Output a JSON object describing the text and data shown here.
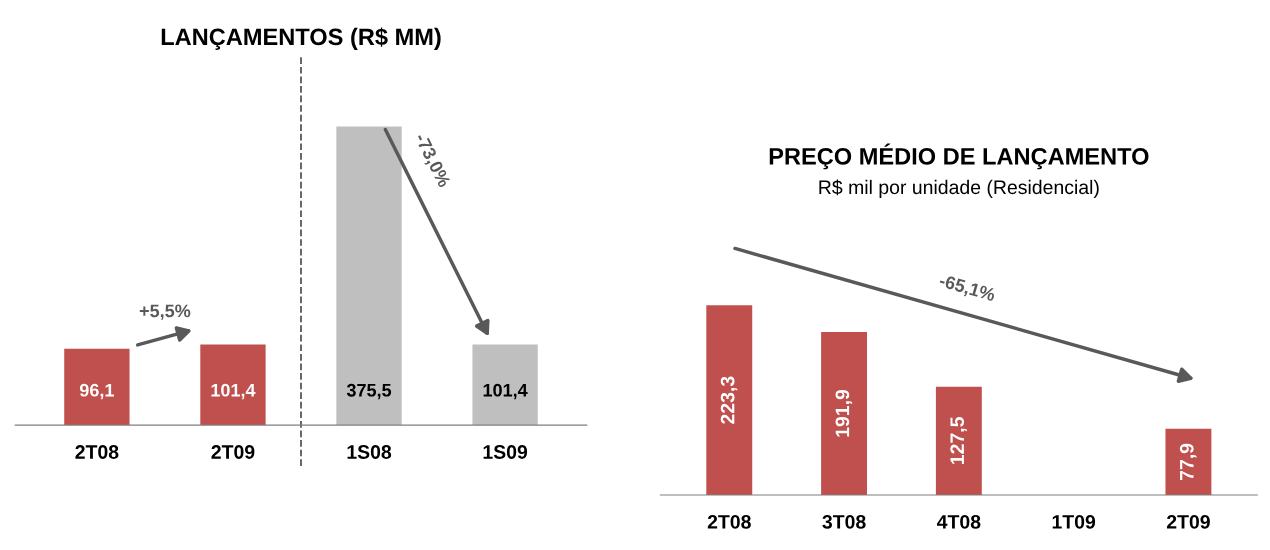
{
  "chart_data": [
    {
      "type": "bar",
      "title": "LANÇAMENTOS (R$ MM)",
      "categories": [
        "2T08",
        "2T09",
        "1S08",
        "1S09"
      ],
      "values": [
        96.1,
        101.4,
        375.5,
        101.4
      ],
      "colors": [
        "#c0504d",
        "#c0504d",
        "#bfbfbf",
        "#bfbfbf"
      ],
      "value_labels": [
        "96,1",
        "101,4",
        "375,5",
        "101,4"
      ],
      "annotations": [
        "+5,5%",
        "-73,0%"
      ],
      "tick_labels": "x",
      "grid": false,
      "legend": false
    },
    {
      "type": "bar",
      "title": "PREÇO MÉDIO DE LANÇAMENTO",
      "subtitle": "R$ mil por unidade (Residencial)",
      "categories": [
        "2T08",
        "3T08",
        "4T08",
        "1T09",
        "2T09"
      ],
      "values": [
        223.3,
        191.9,
        127.5,
        null,
        77.9
      ],
      "colors": [
        "#c0504d",
        "#c0504d",
        "#c0504d",
        "#c0504d",
        "#c0504d"
      ],
      "value_labels": [
        "223,3",
        "191,9",
        "127,5",
        null,
        "77,9"
      ],
      "annotations": [
        "-65,1%"
      ],
      "tick_labels": "x",
      "grid": false,
      "legend": false
    }
  ]
}
